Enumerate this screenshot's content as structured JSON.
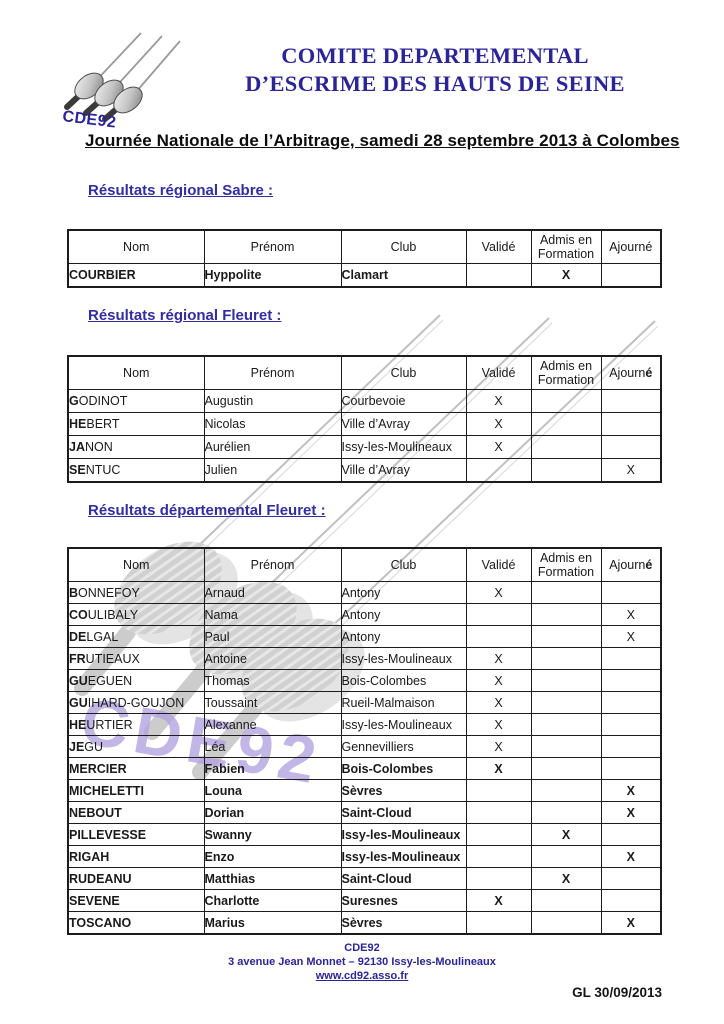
{
  "colors": {
    "title_blue": "#2b2496",
    "heading_blue": "#322da0",
    "table_border": "#1c1c1c",
    "watermark_gray": "#c9c9c9",
    "watermark_purple": "#b4a4e0"
  },
  "logo": {
    "text": "CDE92",
    "icon": "fencing-swords-icon"
  },
  "watermark": {
    "text": "CDE92",
    "icon": "fencing-swords-watermark"
  },
  "title": {
    "line1": "COMITE DEPARTEMENTAL",
    "line2": "D’ESCRIME DES HAUTS DE SEINE"
  },
  "event_title": "Journée Nationale de l’Arbitrage, samedi 28 septembre 2013 à Colombes",
  "sections": [
    {
      "heading": "Résultats régional Sabre :",
      "headers": {
        "nom": "Nom",
        "prenom": "Prénom",
        "club": "Club",
        "valide": "Validé",
        "admis": "Admis en Formation",
        "ajourne": "Ajourné",
        "ajourne_e": ""
      },
      "rows": [
        {
          "nom_b": "COURBIER",
          "nom_r": "",
          "prenom": "Hyppolite",
          "club": "Clamart",
          "valide": "",
          "admis": "X",
          "ajourne": "",
          "bold": true
        }
      ]
    },
    {
      "heading": "Résultats régional Fleuret :",
      "headers": {
        "nom": "Nom",
        "prenom": "Prénom",
        "club": "Club",
        "valide": "Validé",
        "admis": "Admis en Formation",
        "ajourne": "Ajourn",
        "ajourne_e": "é"
      },
      "rows": [
        {
          "nom_b": "G",
          "nom_r": "ODINOT",
          "prenom": "Augustin",
          "club": "Courbevoie",
          "valide": "X",
          "admis": "",
          "ajourne": "",
          "bold": false
        },
        {
          "nom_b": "HE",
          "nom_r": "BERT",
          "prenom": "Nicolas",
          "club": "Ville d’Avray",
          "valide": "X",
          "admis": "",
          "ajourne": "",
          "bold": false
        },
        {
          "nom_b": "JA",
          "nom_r": "NON",
          "prenom": "Aurélien",
          "club": "Issy-les-Moulineaux",
          "valide": "X",
          "admis": "",
          "ajourne": "",
          "bold": false
        },
        {
          "nom_b": "SE",
          "nom_r": "NTUC",
          "prenom": "Julien",
          "club": "Ville d’Avray",
          "valide": "",
          "admis": "",
          "ajourne": "X",
          "bold": false
        }
      ]
    },
    {
      "heading": "Résultats départemental Fleuret :",
      "headers": {
        "nom": "Nom",
        "prenom": "Prénom",
        "club": "Club",
        "valide": "Validé",
        "admis": "Admis en Formation",
        "ajourne": "Ajourn",
        "ajourne_e": "é"
      },
      "rows": [
        {
          "nom_b": "B",
          "nom_r": "ONNEFOY",
          "prenom": "Arnaud",
          "club": "Antony",
          "valide": "X",
          "admis": "",
          "ajourne": "",
          "bold": false
        },
        {
          "nom_b": "CO",
          "nom_r": "ULIBALY",
          "prenom": "Nama",
          "club": "Antony",
          "valide": "",
          "admis": "",
          "ajourne": "X",
          "bold": false
        },
        {
          "nom_b": "DE",
          "nom_r": "LGAL",
          "prenom": "Paul",
          "club": "Antony",
          "valide": "",
          "admis": "",
          "ajourne": "X",
          "bold": false
        },
        {
          "nom_b": "FR",
          "nom_r": "UTIEAUX",
          "prenom": "Antoine",
          "club": "Issy-les-Moulineaux",
          "valide": "X",
          "admis": "",
          "ajourne": "",
          "bold": false
        },
        {
          "nom_b": "GU",
          "nom_r": "EGUEN",
          "prenom": "Thomas",
          "club": "Bois-Colombes",
          "valide": "X",
          "admis": "",
          "ajourne": "",
          "bold": false
        },
        {
          "nom_b": "GU",
          "nom_r": "IHARD-GOUJON",
          "prenom": "Toussaint",
          "club": "Rueil-Malmaison",
          "valide": "X",
          "admis": "",
          "ajourne": "",
          "bold": false
        },
        {
          "nom_b": "HE",
          "nom_r": "URTIER",
          "prenom": "Alexanne",
          "club": "Issy-les-Moulineaux",
          "valide": "X",
          "admis": "",
          "ajourne": "",
          "bold": false
        },
        {
          "nom_b": "JE",
          "nom_r": "GU",
          "prenom": "Léa",
          "club": "Gennevilliers",
          "valide": "X",
          "admis": "",
          "ajourne": "",
          "bold": false
        },
        {
          "nom_b": "MERCIER",
          "nom_r": "",
          "prenom": "Fabien",
          "club": "Bois-Colombes",
          "valide": "X",
          "admis": "",
          "ajourne": "",
          "bold": true
        },
        {
          "nom_b": "MICHELETTI",
          "nom_r": "",
          "prenom": "Louna",
          "club": "Sèvres",
          "valide": "",
          "admis": "",
          "ajourne": "X",
          "bold": true
        },
        {
          "nom_b": "NEBOUT",
          "nom_r": "",
          "prenom": "Dorian",
          "club": "Saint-Cloud",
          "valide": "",
          "admis": "",
          "ajourne": "X",
          "bold": true
        },
        {
          "nom_b": "PILLEVESSE",
          "nom_r": "",
          "prenom": "Swanny",
          "club": "Issy-les-Moulineaux",
          "valide": "",
          "admis": "X",
          "ajourne": "",
          "bold": true
        },
        {
          "nom_b": "RIGAH",
          "nom_r": "",
          "prenom": "Enzo",
          "club": "Issy-les-Moulineaux",
          "valide": "",
          "admis": "",
          "ajourne": "X",
          "bold": true
        },
        {
          "nom_b": "RUDEANU",
          "nom_r": "",
          "prenom": "Matthias",
          "club": "Saint-Cloud",
          "valide": "",
          "admis": "X",
          "ajourne": "",
          "bold": true
        },
        {
          "nom_b": "SEVENE",
          "nom_r": "",
          "prenom": "Charlotte",
          "club": "Suresnes",
          "valide": "X",
          "admis": "",
          "ajourne": "",
          "bold": true
        },
        {
          "nom_b": "TOSCANO",
          "nom_r": "",
          "prenom": "Marius",
          "club": "Sèvres",
          "valide": "",
          "admis": "",
          "ajourne": "X",
          "bold": true
        }
      ]
    }
  ],
  "footer": {
    "org": "CDE92",
    "address": "3 avenue Jean Monnet – 92130 Issy-les-Moulineaux",
    "website": "www.cd92.asso.fr",
    "date_note": "GL 30/09/2013"
  }
}
